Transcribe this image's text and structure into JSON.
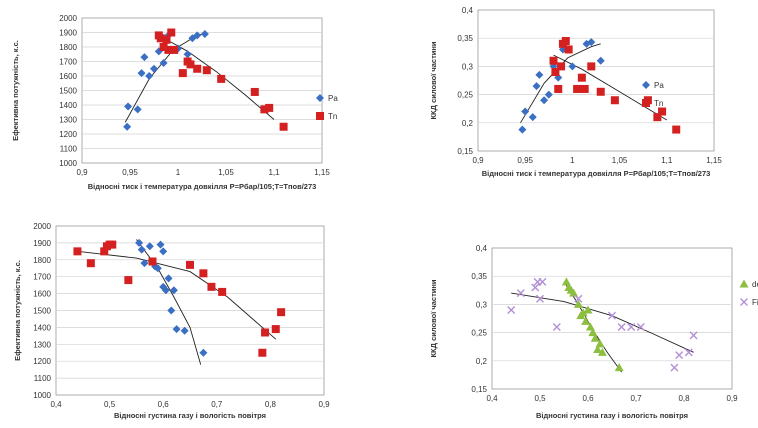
{
  "chart_data": [
    {
      "type": "scatter",
      "ylabel": "Ефективна потужність, к.с.",
      "xlabel": "Відносні тиск і температура довкілля  P=Pбар/105;T=Tпов/273",
      "xlim": [
        0.9,
        1.15
      ],
      "ylim": [
        1000,
        2000
      ],
      "xticks": [
        "0,9",
        "0,95",
        "1",
        "1,05",
        "1,1",
        "1,15"
      ],
      "yticks": [
        "1000",
        "1100",
        "1200",
        "1300",
        "1400",
        "1500",
        "1600",
        "1700",
        "1800",
        "1900",
        "2000"
      ],
      "legend_position": "right",
      "series": [
        {
          "name": "Pa",
          "color": "#3a6fc4",
          "marker": "diamond",
          "x": [
            0.947,
            0.948,
            0.958,
            0.962,
            0.965,
            0.97,
            0.975,
            0.98,
            0.985,
            0.99,
            0.995,
            1.0,
            1.01,
            1.015,
            1.02,
            1.028
          ],
          "y": [
            1250,
            1390,
            1370,
            1620,
            1730,
            1600,
            1650,
            1770,
            1690,
            1880,
            1780,
            1790,
            1750,
            1860,
            1880,
            1890
          ]
        },
        {
          "name": "Tn",
          "color": "#d42020",
          "marker": "square",
          "x": [
            0.98,
            0.982,
            0.985,
            0.988,
            0.99,
            0.993,
            0.996,
            1.005,
            1.01,
            1.013,
            1.02,
            1.03,
            1.045,
            1.08,
            1.09,
            1.095,
            1.11
          ],
          "y": [
            1880,
            1860,
            1800,
            1850,
            1780,
            1900,
            1780,
            1620,
            1700,
            1680,
            1650,
            1640,
            1580,
            1490,
            1370,
            1380,
            1250
          ]
        }
      ],
      "trendlines": [
        {
          "series": "Pa",
          "x": [
            0.945,
            0.97,
            0.995,
            1.02,
            1.03
          ],
          "y": [
            1280,
            1580,
            1780,
            1880,
            1895
          ]
        },
        {
          "series": "Tn",
          "x": [
            0.98,
            1.01,
            1.04,
            1.07,
            1.1
          ],
          "y": [
            1880,
            1770,
            1630,
            1470,
            1300
          ]
        }
      ]
    },
    {
      "type": "scatter",
      "ylabel": "ККД силової частини",
      "xlabel": "Відносні тиск і температура довкілля  P=Pбар/105;T=Tпов/273",
      "xlim": [
        0.9,
        1.15
      ],
      "ylim": [
        0.15,
        0.4
      ],
      "xticks": [
        "0,9",
        "0,95",
        "1",
        "1,05",
        "1,1",
        "1,15"
      ],
      "yticks": [
        "0,15",
        "0,2",
        "0,25",
        "0,3",
        "0,35",
        "0,4"
      ],
      "legend_position": "right",
      "series": [
        {
          "name": "Pa",
          "color": "#3a6fc4",
          "marker": "diamond",
          "x": [
            0.947,
            0.95,
            0.958,
            0.962,
            0.965,
            0.97,
            0.975,
            0.98,
            0.985,
            0.99,
            0.995,
            1.0,
            1.01,
            1.015,
            1.02,
            1.03
          ],
          "y": [
            0.188,
            0.22,
            0.21,
            0.265,
            0.285,
            0.24,
            0.25,
            0.3,
            0.28,
            0.33,
            0.33,
            0.3,
            0.28,
            0.34,
            0.343,
            0.31
          ]
        },
        {
          "name": "Tn",
          "color": "#d42020",
          "marker": "square",
          "x": [
            0.98,
            0.982,
            0.985,
            0.988,
            0.99,
            0.993,
            0.996,
            1.005,
            1.01,
            1.013,
            1.02,
            1.03,
            1.045,
            1.08,
            1.09,
            1.095,
            1.11
          ],
          "y": [
            0.31,
            0.29,
            0.26,
            0.3,
            0.34,
            0.345,
            0.33,
            0.26,
            0.28,
            0.26,
            0.3,
            0.255,
            0.24,
            0.24,
            0.21,
            0.22,
            0.188
          ]
        }
      ],
      "trendlines": [
        {
          "series": "Pa",
          "x": [
            0.945,
            0.97,
            0.995,
            1.02,
            1.03
          ],
          "y": [
            0.2,
            0.27,
            0.315,
            0.335,
            0.34
          ]
        },
        {
          "series": "Tn",
          "x": [
            0.98,
            1.01,
            1.04,
            1.07,
            1.1
          ],
          "y": [
            0.32,
            0.295,
            0.265,
            0.235,
            0.205
          ]
        }
      ]
    },
    {
      "type": "scatter",
      "ylabel": "Ефективна потужність, к.с.",
      "xlabel": "Відносні густина газу і вологість повітря",
      "xlim": [
        0.4,
        0.9
      ],
      "ylim": [
        1000,
        2000
      ],
      "xticks": [
        "0,4",
        "0,5",
        "0,6",
        "0,7",
        "0,8",
        "0,9"
      ],
      "yticks": [
        "1000",
        "1100",
        "1200",
        "1300",
        "1400",
        "1500",
        "1600",
        "1700",
        "1800",
        "1900",
        "2000"
      ],
      "series": [
        {
          "color": "#3a6fc4",
          "marker": "diamond",
          "x": [
            0.555,
            0.56,
            0.565,
            0.575,
            0.585,
            0.59,
            0.595,
            0.6,
            0.6,
            0.605,
            0.61,
            0.615,
            0.62,
            0.625,
            0.64,
            0.675
          ],
          "y": [
            1900,
            1860,
            1780,
            1880,
            1760,
            1750,
            1890,
            1850,
            1640,
            1620,
            1690,
            1500,
            1620,
            1390,
            1380,
            1250
          ]
        },
        {
          "color": "#d42020",
          "marker": "square",
          "x": [
            0.44,
            0.465,
            0.49,
            0.495,
            0.5,
            0.505,
            0.535,
            0.58,
            0.65,
            0.675,
            0.69,
            0.71,
            0.785,
            0.79,
            0.81,
            0.82
          ],
          "y": [
            1850,
            1780,
            1850,
            1880,
            1890,
            1890,
            1680,
            1790,
            1770,
            1720,
            1640,
            1610,
            1250,
            1370,
            1390,
            1490
          ]
        }
      ],
      "trendlines": [
        {
          "x": [
            0.55,
            0.59,
            0.62,
            0.65,
            0.67
          ],
          "y": [
            1920,
            1750,
            1580,
            1400,
            1180
          ]
        },
        {
          "x": [
            0.44,
            0.55,
            0.65,
            0.72,
            0.81
          ],
          "y": [
            1850,
            1810,
            1730,
            1580,
            1330
          ]
        }
      ]
    },
    {
      "type": "scatter",
      "ylabel": "ККД силової частини",
      "xlabel": "Відносні густина газу і вологість повітря",
      "xlim": [
        0.4,
        0.9
      ],
      "ylim": [
        0.15,
        0.4
      ],
      "xticks": [
        "0,4",
        "0,5",
        "0,6",
        "0,7",
        "0,8",
        "0,9"
      ],
      "yticks": [
        "0,15",
        "0,2",
        "0,25",
        "0,3",
        "0,35",
        "0,4"
      ],
      "legend_position": "right",
      "series": [
        {
          "name": "de",
          "color": "#8cbf3f",
          "marker": "triangle",
          "x": [
            0.555,
            0.56,
            0.565,
            0.57,
            0.58,
            0.585,
            0.59,
            0.595,
            0.6,
            0.605,
            0.61,
            0.615,
            0.62,
            0.625,
            0.63,
            0.665
          ],
          "y": [
            0.34,
            0.33,
            0.325,
            0.32,
            0.3,
            0.28,
            0.285,
            0.27,
            0.29,
            0.26,
            0.25,
            0.24,
            0.22,
            0.23,
            0.215,
            0.188
          ]
        },
        {
          "name": "Fi",
          "color": "#b28fd6",
          "marker": "x",
          "x": [
            0.44,
            0.46,
            0.49,
            0.495,
            0.5,
            0.505,
            0.535,
            0.58,
            0.65,
            0.67,
            0.69,
            0.71,
            0.78,
            0.79,
            0.81,
            0.82
          ],
          "y": [
            0.29,
            0.32,
            0.33,
            0.34,
            0.31,
            0.34,
            0.26,
            0.31,
            0.28,
            0.26,
            0.26,
            0.26,
            0.188,
            0.21,
            0.215,
            0.245
          ]
        }
      ],
      "trendlines": [
        {
          "series": "de",
          "x": [
            0.55,
            0.58,
            0.61,
            0.64,
            0.67
          ],
          "y": [
            0.34,
            0.3,
            0.255,
            0.215,
            0.18
          ]
        },
        {
          "series": "Fi",
          "x": [
            0.44,
            0.55,
            0.65,
            0.73,
            0.82
          ],
          "y": [
            0.32,
            0.305,
            0.28,
            0.25,
            0.215
          ]
        }
      ]
    }
  ]
}
